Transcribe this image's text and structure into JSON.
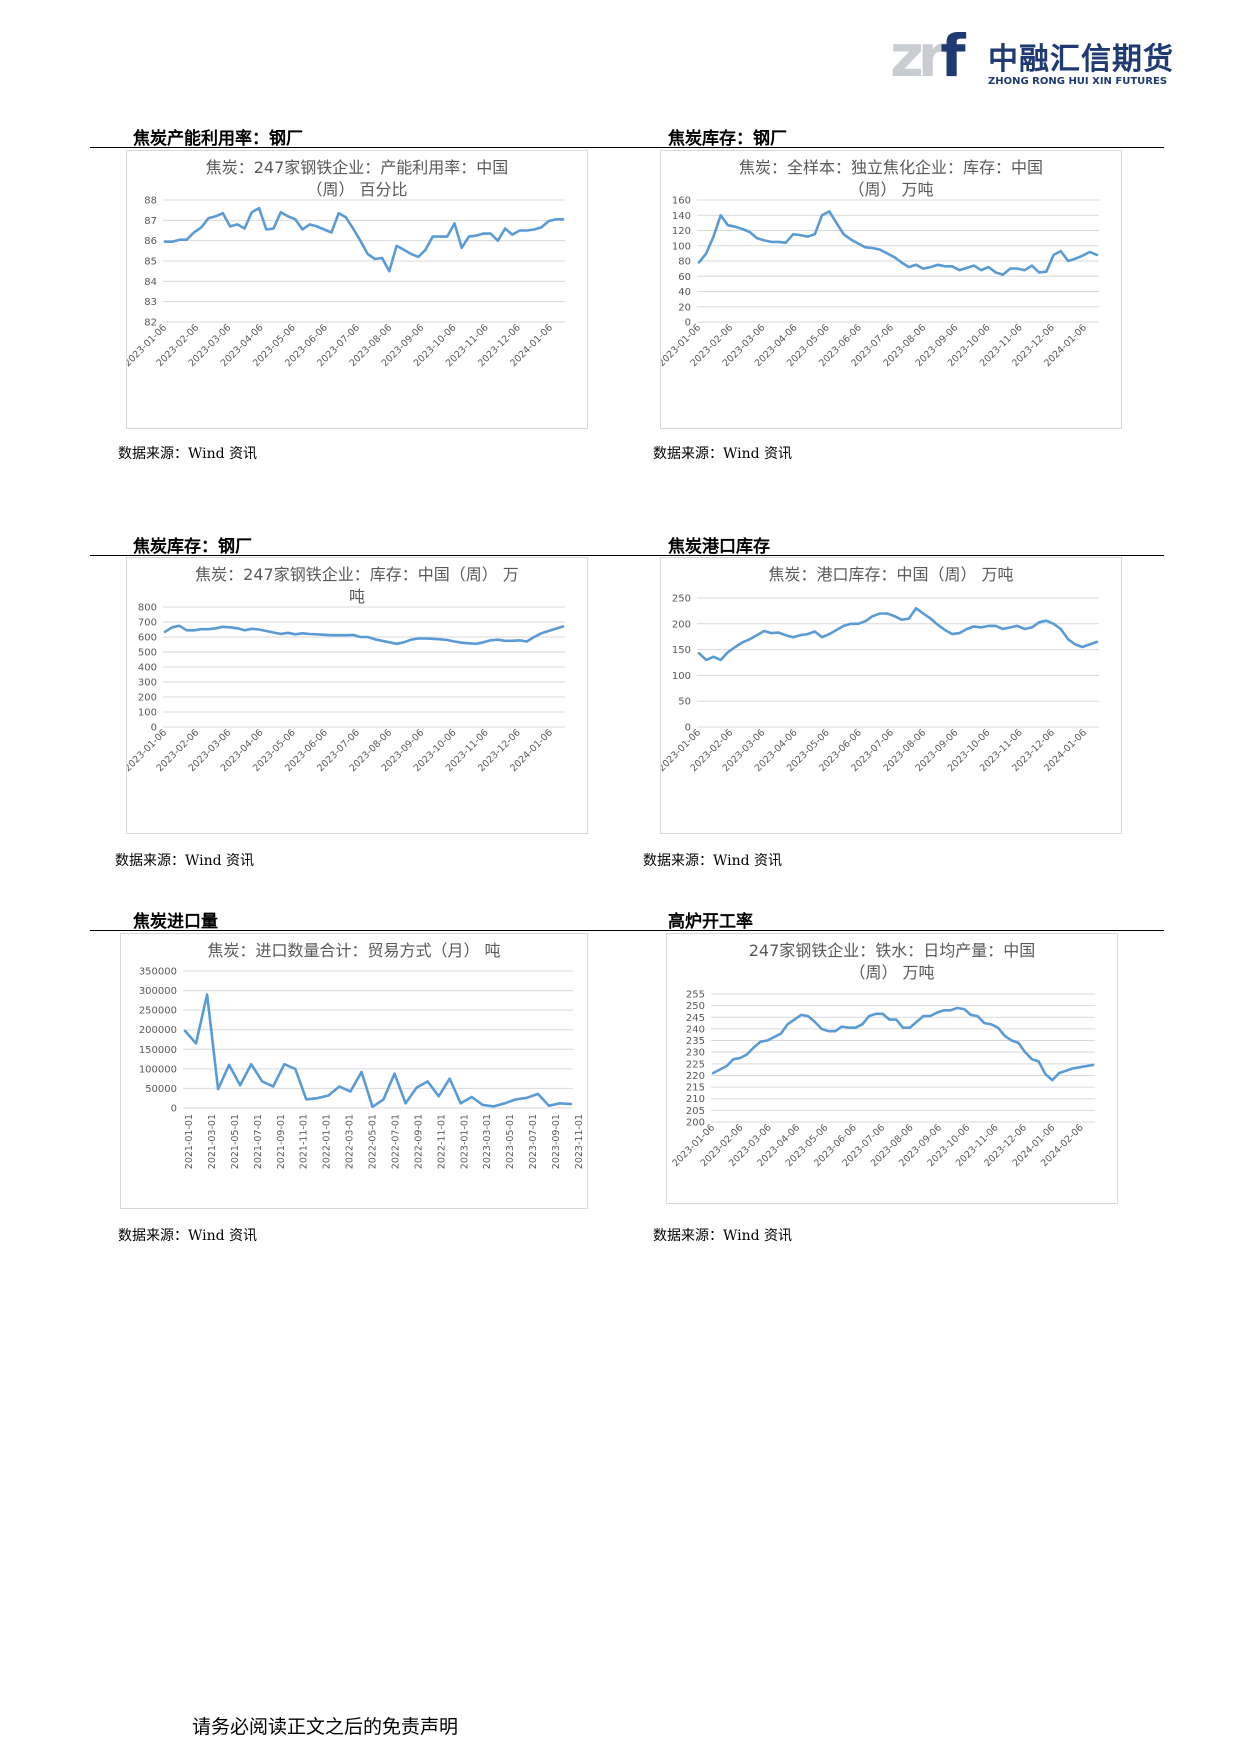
{
  "brand": {
    "mark": "zrf",
    "name_cn": "中融汇信期货",
    "name_en": "ZHONG RONG HUI XIN FUTURES"
  },
  "source_label": "数据来源：Wind 资讯",
  "footer": "请务必阅读正文之后的免责声明",
  "colors": {
    "line": "#5b9bd5",
    "grid": "#d9d9d9",
    "axis_text": "#595959",
    "title_text": "#595959"
  },
  "sections": [
    {
      "title": "焦炭产能利用率：钢厂"
    },
    {
      "title": "焦炭库存：钢厂"
    },
    {
      "title": "焦炭库存：钢厂"
    },
    {
      "title": "焦炭港口库存"
    },
    {
      "title": "焦炭进口量"
    },
    {
      "title": "高炉开工率"
    }
  ],
  "chart_data": [
    {
      "type": "line",
      "title_lines": [
        "焦炭：247家钢铁企业：产能利用率：中国",
        "（周） 百分比"
      ],
      "x_ticks": [
        "2023-01-06",
        "2023-02-06",
        "2023-03-06",
        "2023-04-06",
        "2023-05-06",
        "2023-06-06",
        "2023-07-06",
        "2023-08-06",
        "2023-09-06",
        "2023-10-06",
        "2023-11-06",
        "2023-12-06",
        "2024-01-06"
      ],
      "y_ticks": [
        82,
        83,
        84,
        85,
        86,
        87,
        88
      ],
      "ylim": [
        82,
        88
      ],
      "values": [
        85.95,
        85.95,
        86.05,
        86.05,
        86.4,
        86.65,
        87.1,
        87.2,
        87.35,
        86.7,
        86.8,
        86.6,
        87.4,
        87.6,
        86.55,
        86.6,
        87.4,
        87.2,
        87.05,
        86.55,
        86.8,
        86.7,
        86.55,
        86.4,
        87.35,
        87.15,
        86.6,
        86.0,
        85.35,
        85.1,
        85.15,
        84.5,
        85.75,
        85.55,
        85.35,
        85.2,
        85.55,
        86.2,
        86.2,
        86.2,
        86.85,
        85.65,
        86.2,
        86.25,
        86.35,
        86.35,
        86.0,
        86.6,
        86.3,
        86.5,
        86.5,
        86.55,
        86.65,
        86.95,
        87.05,
        87.05
      ]
    },
    {
      "type": "line",
      "title_lines": [
        "焦炭：全样本：独立焦化企业：库存：中国",
        "（周） 万吨"
      ],
      "x_ticks": [
        "2023-01-06",
        "2023-02-06",
        "2023-03-06",
        "2023-04-06",
        "2023-05-06",
        "2023-06-06",
        "2023-07-06",
        "2023-08-06",
        "2023-09-06",
        "2023-10-06",
        "2023-11-06",
        "2023-12-06",
        "2024-01-06"
      ],
      "y_ticks": [
        0,
        20,
        40,
        60,
        80,
        100,
        120,
        140,
        160
      ],
      "ylim": [
        0,
        160
      ],
      "values": [
        78,
        90,
        112,
        140,
        127,
        125,
        122,
        118,
        110,
        107,
        105,
        105,
        104,
        115,
        114,
        112,
        115,
        140,
        145,
        130,
        115,
        108,
        103,
        98,
        97,
        95,
        90,
        85,
        78,
        72,
        75,
        70,
        72,
        75,
        73,
        73,
        68,
        71,
        74,
        68,
        72,
        65,
        62,
        70,
        70,
        68,
        74,
        65,
        66,
        88,
        93,
        80,
        83,
        87,
        92,
        88
      ]
    },
    {
      "type": "line",
      "title_lines": [
        "焦炭：247家钢铁企业：库存：中国（周） 万",
        "吨"
      ],
      "x_ticks": [
        "2023-01-06",
        "2023-02-06",
        "2023-03-06",
        "2023-04-06",
        "2023-05-06",
        "2023-06-06",
        "2023-07-06",
        "2023-08-06",
        "2023-09-06",
        "2023-10-06",
        "2023-11-06",
        "2023-12-06",
        "2024-01-06"
      ],
      "y_ticks": [
        0,
        100,
        200,
        300,
        400,
        500,
        600,
        700,
        800
      ],
      "ylim": [
        0,
        800
      ],
      "values": [
        635,
        665,
        675,
        645,
        645,
        652,
        652,
        658,
        668,
        665,
        658,
        645,
        655,
        650,
        640,
        630,
        620,
        628,
        618,
        625,
        620,
        618,
        615,
        612,
        612,
        612,
        614,
        600,
        600,
        585,
        575,
        565,
        555,
        565,
        582,
        590,
        590,
        588,
        585,
        580,
        570,
        562,
        558,
        555,
        565,
        578,
        582,
        575,
        575,
        578,
        570,
        600,
        625,
        640,
        655,
        670
      ]
    },
    {
      "type": "line",
      "title_lines": [
        "焦炭：港口库存：中国（周） 万吨"
      ],
      "x_ticks": [
        "2023-01-06",
        "2023-02-06",
        "2023-03-06",
        "2023-04-06",
        "2023-05-06",
        "2023-06-06",
        "2023-07-06",
        "2023-08-06",
        "2023-09-06",
        "2023-10-06",
        "2023-11-06",
        "2023-12-06",
        "2024-01-06"
      ],
      "y_ticks": [
        0,
        50,
        100,
        150,
        200,
        250
      ],
      "ylim": [
        0,
        250
      ],
      "values": [
        143,
        130,
        136,
        130,
        145,
        155,
        164,
        170,
        178,
        186,
        182,
        183,
        178,
        174,
        178,
        180,
        185,
        174,
        180,
        188,
        196,
        200,
        200,
        205,
        215,
        220,
        220,
        215,
        208,
        210,
        230,
        220,
        210,
        198,
        188,
        180,
        182,
        190,
        195,
        193,
        196,
        196,
        190,
        193,
        196,
        190,
        193,
        203,
        206,
        200,
        190,
        170,
        160,
        155,
        160,
        165
      ]
    },
    {
      "type": "line",
      "title_lines": [
        "焦炭：进口数量合计：贸易方式（月） 吨"
      ],
      "x_ticks": [
        "2021-01-01",
        "2021-03-01",
        "2021-05-01",
        "2021-07-01",
        "2021-09-01",
        "2021-11-01",
        "2022-01-01",
        "2022-03-01",
        "2022-05-01",
        "2022-07-01",
        "2022-09-01",
        "2022-11-01",
        "2023-01-01",
        "2023-03-01",
        "2023-05-01",
        "2023-07-01",
        "2023-09-01",
        "2023-11-01"
      ],
      "y_ticks": [
        0,
        50000,
        100000,
        150000,
        200000,
        250000,
        300000,
        350000
      ],
      "ylim": [
        0,
        350000
      ],
      "values": [
        197000,
        165000,
        290000,
        48000,
        110000,
        58000,
        112000,
        68000,
        55000,
        112000,
        100000,
        22000,
        25000,
        32000,
        55000,
        42000,
        92000,
        3000,
        22000,
        88000,
        12000,
        52000,
        68000,
        30000,
        75000,
        12000,
        28000,
        8000,
        4000,
        12000,
        22000,
        26000,
        36000,
        6000,
        12000,
        10000
      ]
    },
    {
      "type": "line",
      "title_lines": [
        "247家钢铁企业：铁水：日均产量：中国",
        "（周） 万吨"
      ],
      "x_ticks": [
        "2023-01-06",
        "2023-02-06",
        "2023-03-06",
        "2023-04-06",
        "2023-05-06",
        "2023-06-06",
        "2023-07-06",
        "2023-08-06",
        "2023-09-06",
        "2023-10-06",
        "2023-11-06",
        "2023-12-06",
        "2024-01-06",
        "2024-02-06"
      ],
      "y_ticks": [
        200,
        205,
        210,
        215,
        220,
        225,
        230,
        235,
        240,
        245,
        250,
        255
      ],
      "ylim": [
        200,
        255
      ],
      "values": [
        221,
        222.5,
        224,
        227,
        227.5,
        229,
        232,
        234.5,
        235,
        236.5,
        238,
        242,
        244,
        246,
        245.5,
        243,
        240,
        239,
        239,
        241,
        240.5,
        240.5,
        242,
        245.5,
        246.5,
        246.5,
        244,
        244,
        240.5,
        240.5,
        243,
        245.5,
        245.5,
        247,
        248,
        248,
        249,
        248.5,
        246,
        245.5,
        242.5,
        242,
        240.5,
        237,
        235,
        234,
        230,
        227,
        226,
        220.5,
        218,
        221,
        222,
        223,
        223.5,
        224,
        224.5
      ]
    }
  ]
}
